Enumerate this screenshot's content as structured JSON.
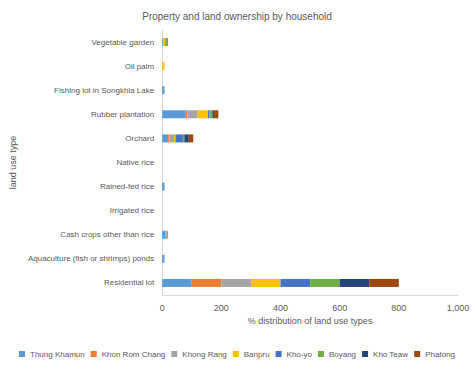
{
  "chart_data": {
    "type": "bar",
    "title": "Property and land ownership by household",
    "x_label": "% distribution of land use types",
    "y_label": "land use type",
    "orientation": "horizontal",
    "stacked": true,
    "grid": false,
    "legend": "bottom",
    "categories": [
      "Residential lot",
      "Aquaculture (fish or shrimps) ponds",
      "Cash crops other than rice",
      "Irrigated rice",
      "Rained-fed rice",
      "Native rice",
      "Orchard",
      "Rubber plantation",
      "Fishing lot in Songkhla Lake",
      "Oil palm",
      "Vegetable garden"
    ],
    "xlim": [
      0,
      1000
    ],
    "xticks": [
      0,
      200,
      400,
      600,
      800,
      1000
    ],
    "series": [
      {
        "name": "Thung Khamun",
        "color": "#5b9bd5",
        "values": [
          100,
          8,
          10,
          0,
          8,
          0,
          20,
          80,
          8,
          0,
          3
        ]
      },
      {
        "name": "Khon Rom Chang",
        "color": "#ed7d31",
        "values": [
          100,
          0,
          2,
          0,
          0,
          0,
          5,
          5,
          0,
          0,
          0
        ]
      },
      {
        "name": "Khong Rang",
        "color": "#a5a5a5",
        "values": [
          100,
          0,
          8,
          0,
          0,
          0,
          15,
          35,
          0,
          0,
          0
        ]
      },
      {
        "name": "Banpru",
        "color": "#ffc000",
        "values": [
          100,
          0,
          0,
          0,
          0,
          0,
          5,
          35,
          0,
          8,
          7
        ]
      },
      {
        "name": "Kho-yo",
        "color": "#4472c4",
        "values": [
          100,
          0,
          0,
          0,
          0,
          0,
          25,
          5,
          0,
          0,
          0
        ]
      },
      {
        "name": "Boyang",
        "color": "#70ad47",
        "values": [
          100,
          0,
          0,
          0,
          0,
          0,
          5,
          10,
          0,
          0,
          10
        ]
      },
      {
        "name": "Kho Teaw",
        "color": "#264478",
        "values": [
          100,
          0,
          0,
          0,
          0,
          0,
          15,
          5,
          0,
          0,
          0
        ]
      },
      {
        "name": "Phatong",
        "color": "#9e480e",
        "values": [
          100,
          0,
          0,
          0,
          0,
          0,
          15,
          15,
          0,
          0,
          0
        ]
      }
    ]
  }
}
